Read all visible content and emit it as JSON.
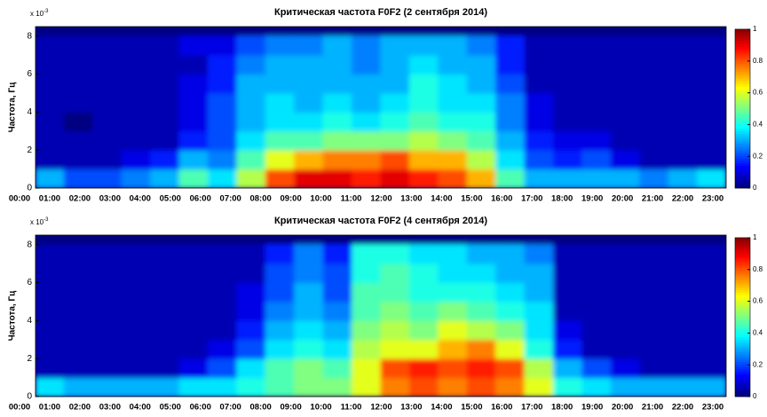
{
  "chart_data": [
    {
      "type": "heatmap",
      "title": "Критическая частота F0F2 (2 сентября 2014)",
      "ylabel": "Частота, Гц",
      "y_multiplier": "x 10",
      "y_multiplier_exponent": "-3",
      "categories": [
        "00:00",
        "01:00",
        "02:00",
        "03:00",
        "04:00",
        "05:00",
        "06:00",
        "07:00",
        "08:00",
        "09:00",
        "10:00",
        "11:00",
        "12:00",
        "13:00",
        "14:00",
        "15:00",
        "16:00",
        "17:00",
        "18:00",
        "19:00",
        "20:00",
        "21:00",
        "22:00",
        "23:00"
      ],
      "ybins": [
        0,
        1,
        2,
        3,
        4,
        5,
        6,
        7,
        8
      ],
      "ylim": [
        0,
        8.5
      ],
      "yticks": [
        0,
        2,
        4,
        6,
        8
      ],
      "colormap": "jet",
      "clim": [
        0,
        1
      ],
      "cticks": [
        0,
        0.2,
        0.4,
        0.6,
        0.8,
        1
      ],
      "values": [
        [
          0.3,
          0.2,
          0.2,
          0.25,
          0.3,
          0.45,
          0.35,
          0.55,
          0.8,
          0.9,
          0.9,
          0.85,
          0.9,
          0.85,
          0.8,
          0.7,
          0.45,
          0.3,
          0.3,
          0.3,
          0.3,
          0.25,
          0.3,
          0.35
        ],
        [
          0.05,
          0.05,
          0.05,
          0.1,
          0.15,
          0.3,
          0.25,
          0.45,
          0.6,
          0.7,
          0.75,
          0.75,
          0.8,
          0.7,
          0.7,
          0.55,
          0.35,
          0.2,
          0.15,
          0.2,
          0.1,
          0.05,
          0.05,
          0.05
        ],
        [
          0.05,
          0.05,
          0.05,
          0.05,
          0.05,
          0.15,
          0.2,
          0.35,
          0.45,
          0.45,
          0.5,
          0.5,
          0.5,
          0.55,
          0.5,
          0.45,
          0.3,
          0.15,
          0.1,
          0.1,
          0.05,
          0.05,
          0.05,
          0.05
        ],
        [
          0.05,
          0,
          0.05,
          0.05,
          0.05,
          0.1,
          0.2,
          0.3,
          0.35,
          0.35,
          0.4,
          0.35,
          0.4,
          0.45,
          0.4,
          0.4,
          0.25,
          0.1,
          0.05,
          0.05,
          0.05,
          0.05,
          0.05,
          0.05
        ],
        [
          0.05,
          0.05,
          0.05,
          0.05,
          0.05,
          0.1,
          0.2,
          0.3,
          0.35,
          0.3,
          0.35,
          0.3,
          0.35,
          0.4,
          0.35,
          0.35,
          0.25,
          0.1,
          0.05,
          0.05,
          0.05,
          0.05,
          0.05,
          0.05
        ],
        [
          0.05,
          0.05,
          0.05,
          0.05,
          0.05,
          0.1,
          0.15,
          0.3,
          0.3,
          0.3,
          0.3,
          0.3,
          0.3,
          0.4,
          0.35,
          0.3,
          0.2,
          0.05,
          0.05,
          0.05,
          0.05,
          0.05,
          0.05,
          0.05
        ],
        [
          0.05,
          0.05,
          0.05,
          0.05,
          0.05,
          0.05,
          0.15,
          0.25,
          0.3,
          0.3,
          0.3,
          0.25,
          0.3,
          0.35,
          0.3,
          0.3,
          0.15,
          0.05,
          0.05,
          0.05,
          0.05,
          0.05,
          0.05,
          0.05
        ],
        [
          0.05,
          0.05,
          0.05,
          0.05,
          0.05,
          0.1,
          0.1,
          0.2,
          0.25,
          0.25,
          0.3,
          0.25,
          0.3,
          0.3,
          0.3,
          0.25,
          0.15,
          0.05,
          0.05,
          0.05,
          0.05,
          0.05,
          0.05,
          0.05
        ]
      ]
    },
    {
      "type": "heatmap",
      "title": "Критическая частота F0F2 (4 сентября 2014)",
      "ylabel": "Частота, Гц",
      "y_multiplier": "x 10",
      "y_multiplier_exponent": "-3",
      "categories": [
        "00:00",
        "01:00",
        "02:00",
        "03:00",
        "04:00",
        "05:00",
        "06:00",
        "07:00",
        "08:00",
        "09:00",
        "10:00",
        "11:00",
        "12:00",
        "13:00",
        "14:00",
        "15:00",
        "16:00",
        "17:00",
        "18:00",
        "19:00",
        "20:00",
        "21:00",
        "22:00",
        "23:00"
      ],
      "ybins": [
        0,
        1,
        2,
        3,
        4,
        5,
        6,
        7,
        8
      ],
      "ylim": [
        0,
        8.5
      ],
      "yticks": [
        0,
        2,
        4,
        6,
        8
      ],
      "colormap": "jet",
      "clim": [
        0,
        1
      ],
      "cticks": [
        0,
        0.2,
        0.4,
        0.6,
        0.8,
        1
      ],
      "values": [
        [
          0.35,
          0.3,
          0.3,
          0.3,
          0.3,
          0.35,
          0.35,
          0.4,
          0.45,
          0.5,
          0.5,
          0.6,
          0.75,
          0.8,
          0.75,
          0.8,
          0.75,
          0.6,
          0.4,
          0.35,
          0.3,
          0.3,
          0.3,
          0.3
        ],
        [
          0.05,
          0.05,
          0.05,
          0.05,
          0.05,
          0.1,
          0.2,
          0.35,
          0.45,
          0.5,
          0.45,
          0.6,
          0.8,
          0.85,
          0.8,
          0.85,
          0.8,
          0.55,
          0.3,
          0.2,
          0.1,
          0.05,
          0.05,
          0.05
        ],
        [
          0.05,
          0.05,
          0.05,
          0.05,
          0.05,
          0.05,
          0.1,
          0.2,
          0.35,
          0.4,
          0.35,
          0.55,
          0.6,
          0.6,
          0.7,
          0.75,
          0.6,
          0.4,
          0.15,
          0.05,
          0.05,
          0.05,
          0.05,
          0.05
        ],
        [
          0.05,
          0.05,
          0.05,
          0.05,
          0.05,
          0.05,
          0.05,
          0.15,
          0.3,
          0.35,
          0.3,
          0.5,
          0.55,
          0.5,
          0.6,
          0.55,
          0.5,
          0.35,
          0.1,
          0.05,
          0.05,
          0.05,
          0.05,
          0.05
        ],
        [
          0.05,
          0.05,
          0.05,
          0.05,
          0.05,
          0.05,
          0.05,
          0.1,
          0.25,
          0.3,
          0.25,
          0.45,
          0.5,
          0.45,
          0.5,
          0.45,
          0.4,
          0.35,
          0.05,
          0.05,
          0.05,
          0.05,
          0.05,
          0.05
        ],
        [
          0.05,
          0.05,
          0.05,
          0.05,
          0.05,
          0.05,
          0.05,
          0.1,
          0.2,
          0.3,
          0.2,
          0.45,
          0.45,
          0.4,
          0.4,
          0.4,
          0.35,
          0.3,
          0.05,
          0.05,
          0.05,
          0.05,
          0.05,
          0.05
        ],
        [
          0.05,
          0.05,
          0.05,
          0.05,
          0.05,
          0.05,
          0.05,
          0.05,
          0.2,
          0.25,
          0.2,
          0.4,
          0.45,
          0.4,
          0.35,
          0.35,
          0.3,
          0.3,
          0.05,
          0.05,
          0.05,
          0.05,
          0.05,
          0.05
        ],
        [
          0.05,
          0.05,
          0.05,
          0.05,
          0.05,
          0.05,
          0.05,
          0.05,
          0.15,
          0.25,
          0.15,
          0.4,
          0.4,
          0.35,
          0.35,
          0.3,
          0.3,
          0.25,
          0.05,
          0.05,
          0.05,
          0.05,
          0.05,
          0.05
        ]
      ]
    }
  ]
}
